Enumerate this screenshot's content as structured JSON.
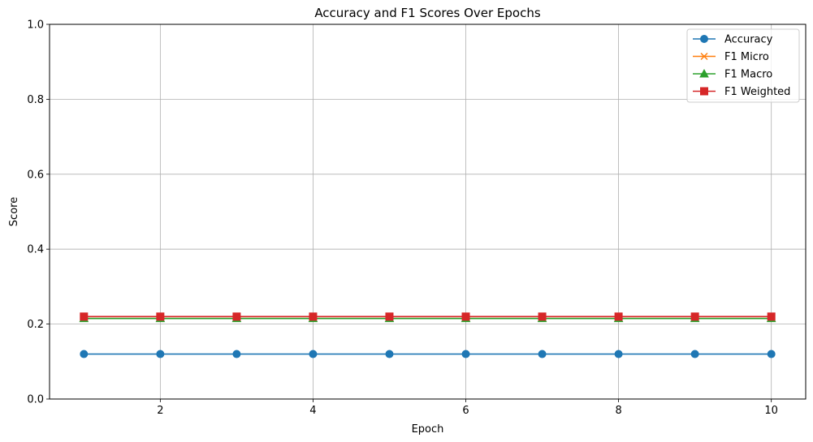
{
  "chart_data": {
    "type": "line",
    "title": "Accuracy and F1 Scores Over Epochs",
    "xlabel": "Epoch",
    "ylabel": "Score",
    "x": [
      1,
      2,
      3,
      4,
      5,
      6,
      7,
      8,
      9,
      10
    ],
    "xlim": [
      0.55,
      10.45
    ],
    "ylim": [
      0.0,
      1.0
    ],
    "xticks": [
      2,
      4,
      6,
      8,
      10
    ],
    "yticks": [
      0.0,
      0.2,
      0.4,
      0.6,
      0.8,
      1.0
    ],
    "grid": true,
    "legend_position": "top-right",
    "series": [
      {
        "name": "Accuracy",
        "color": "#1f77b4",
        "marker": "circle",
        "values": [
          0.12,
          0.12,
          0.12,
          0.12,
          0.12,
          0.12,
          0.12,
          0.12,
          0.12,
          0.12
        ]
      },
      {
        "name": "F1 Micro",
        "color": "#ff7f0e",
        "marker": "x",
        "values": [
          0.22,
          0.22,
          0.22,
          0.22,
          0.22,
          0.22,
          0.22,
          0.22,
          0.22,
          0.22
        ]
      },
      {
        "name": "F1 Macro",
        "color": "#2ca02c",
        "marker": "triangle",
        "values": [
          0.215,
          0.215,
          0.215,
          0.215,
          0.215,
          0.215,
          0.215,
          0.215,
          0.215,
          0.215
        ]
      },
      {
        "name": "F1 Weighted",
        "color": "#d62728",
        "marker": "square",
        "values": [
          0.22,
          0.22,
          0.22,
          0.22,
          0.22,
          0.22,
          0.22,
          0.22,
          0.22,
          0.22
        ]
      }
    ]
  }
}
